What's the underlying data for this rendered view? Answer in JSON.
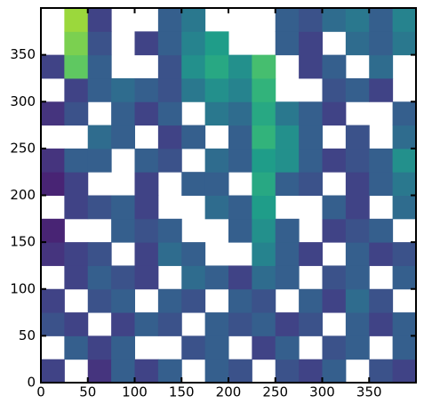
{
  "chart_data": {
    "type": "heatmap",
    "colormap": "viridis",
    "clim": [
      0,
      1
    ],
    "xlim": [
      0,
      400
    ],
    "ylim": [
      0,
      400
    ],
    "xticks": [
      0,
      50,
      100,
      150,
      200,
      250,
      300,
      350
    ],
    "yticks": [
      0,
      50,
      100,
      150,
      200,
      250,
      300,
      350
    ],
    "z": [
      [
        0.2,
        null,
        0.15,
        0.3,
        0.2,
        0.3,
        null,
        0.3,
        0.25,
        null,
        0.25,
        0.2,
        0.3,
        null,
        0.25,
        0.2
      ],
      [
        null,
        0.3,
        0.2,
        0.3,
        null,
        null,
        0.25,
        0.3,
        null,
        0.2,
        0.3,
        null,
        0.25,
        0.3,
        null,
        0.3
      ],
      [
        0.25,
        0.2,
        null,
        0.2,
        0.3,
        0.25,
        null,
        0.3,
        0.25,
        0.3,
        0.2,
        0.25,
        null,
        0.3,
        0.2,
        0.3
      ],
      [
        0.2,
        null,
        0.25,
        0.3,
        null,
        0.3,
        0.25,
        null,
        0.3,
        0.25,
        null,
        0.3,
        0.2,
        0.35,
        0.25,
        null
      ],
      [
        null,
        0.2,
        0.3,
        0.25,
        0.2,
        null,
        0.35,
        0.3,
        0.2,
        0.35,
        0.3,
        null,
        0.25,
        0.3,
        null,
        0.3
      ],
      [
        0.15,
        0.2,
        0.25,
        null,
        0.2,
        0.35,
        0.3,
        null,
        null,
        0.45,
        0.3,
        0.2,
        null,
        0.3,
        0.2,
        0.25
      ],
      [
        0.1,
        null,
        null,
        0.3,
        0.25,
        0.3,
        null,
        null,
        0.3,
        0.5,
        0.3,
        null,
        0.2,
        0.25,
        0.3,
        null
      ],
      [
        null,
        0.2,
        0.25,
        0.3,
        0.2,
        null,
        null,
        0.35,
        0.3,
        0.55,
        null,
        null,
        0.3,
        0.2,
        null,
        0.35
      ],
      [
        0.1,
        0.2,
        null,
        null,
        0.2,
        null,
        0.3,
        0.3,
        null,
        0.6,
        0.3,
        0.25,
        null,
        0.2,
        0.3,
        0.4
      ],
      [
        0.15,
        0.3,
        0.3,
        null,
        0.3,
        0.25,
        null,
        0.35,
        0.3,
        0.55,
        0.5,
        0.3,
        0.2,
        0.25,
        0.3,
        0.5
      ],
      [
        null,
        null,
        0.35,
        0.3,
        null,
        0.2,
        0.3,
        null,
        0.3,
        0.65,
        0.5,
        0.3,
        null,
        0.25,
        null,
        0.35
      ],
      [
        0.15,
        0.25,
        null,
        0.3,
        0.2,
        0.3,
        null,
        0.4,
        0.35,
        0.6,
        0.4,
        0.3,
        0.2,
        null,
        null,
        0.3
      ],
      [
        null,
        0.2,
        0.3,
        0.35,
        0.3,
        0.25,
        0.4,
        0.5,
        0.45,
        0.65,
        null,
        null,
        0.25,
        0.3,
        0.2,
        null
      ],
      [
        0.2,
        0.75,
        0.3,
        null,
        null,
        0.25,
        0.5,
        0.6,
        0.5,
        0.7,
        null,
        0.2,
        0.3,
        null,
        0.35,
        null
      ],
      [
        null,
        0.8,
        0.25,
        null,
        0.2,
        0.3,
        0.45,
        0.55,
        null,
        null,
        0.3,
        0.2,
        null,
        0.35,
        0.3,
        0.4
      ],
      [
        null,
        0.85,
        0.2,
        null,
        null,
        0.3,
        0.4,
        null,
        null,
        null,
        0.3,
        0.25,
        0.35,
        0.4,
        0.3,
        0.45
      ]
    ]
  }
}
